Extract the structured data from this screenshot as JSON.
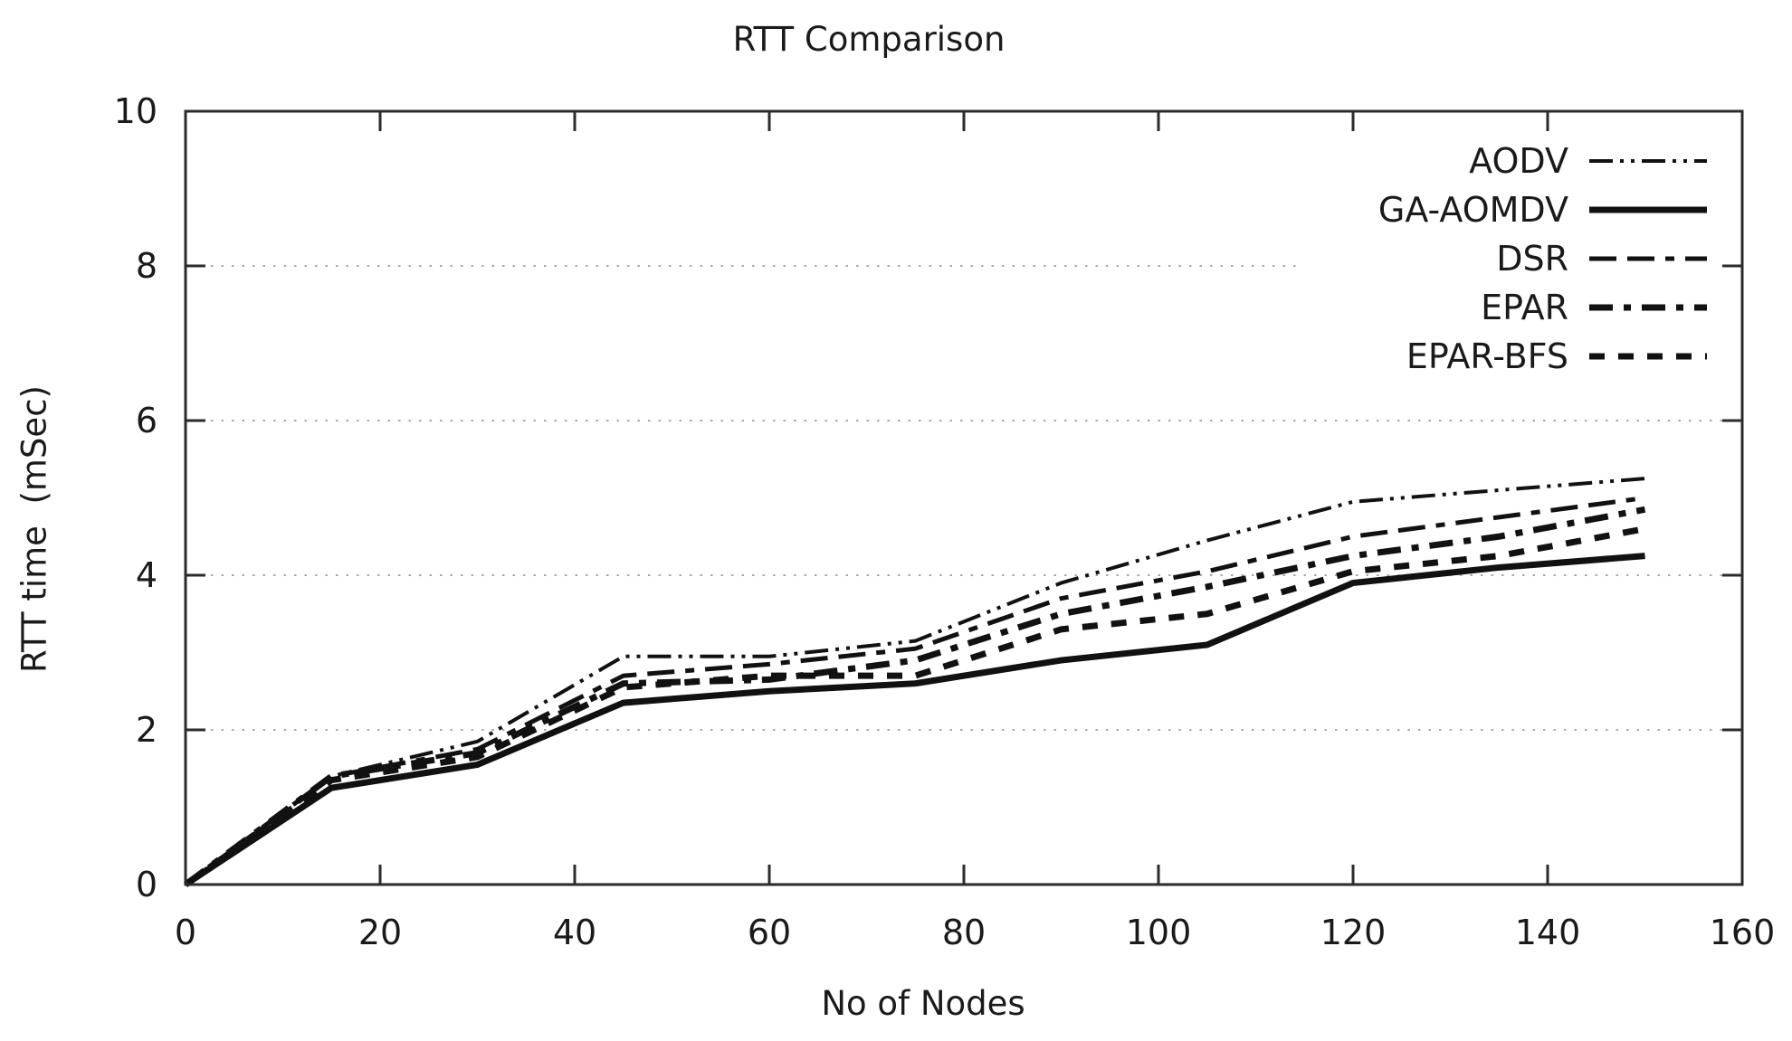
{
  "chart_data": {
    "type": "line",
    "title": "RTT Comparison",
    "xlabel": "No of Nodes",
    "ylabel": "RTT time  (mSec)",
    "xlim": [
      0,
      160
    ],
    "ylim": [
      0,
      10
    ],
    "xticks": [
      0,
      20,
      40,
      60,
      80,
      100,
      120,
      140,
      160
    ],
    "yticks": [
      0,
      2,
      4,
      6,
      8,
      10
    ],
    "grid": "horizontal-dotted",
    "legend_position": "top-right-inside",
    "style": {
      "line_color": "#111111",
      "axis_color": "#2b2b2b",
      "grid_color": "#ada5a5",
      "text_color": "#1a1a1a",
      "background": "#ffffff"
    },
    "series": [
      {
        "name": "AODV",
        "dash": "26 8 4 8 4 8",
        "width": 4,
        "points": [
          [
            0,
            0
          ],
          [
            15,
            1.4
          ],
          [
            30,
            1.85
          ],
          [
            45,
            2.95
          ],
          [
            60,
            2.95
          ],
          [
            75,
            3.15
          ],
          [
            90,
            3.9
          ],
          [
            105,
            4.45
          ],
          [
            120,
            4.95
          ],
          [
            135,
            5.1
          ],
          [
            150,
            5.25
          ]
        ]
      },
      {
        "name": "GA-AOMDV",
        "dash": "",
        "width": 7,
        "points": [
          [
            0,
            0
          ],
          [
            15,
            1.25
          ],
          [
            30,
            1.55
          ],
          [
            45,
            2.35
          ],
          [
            60,
            2.5
          ],
          [
            75,
            2.6
          ],
          [
            90,
            2.9
          ],
          [
            105,
            3.1
          ],
          [
            120,
            3.9
          ],
          [
            135,
            4.1
          ],
          [
            150,
            4.25
          ]
        ]
      },
      {
        "name": "DSR",
        "dash": "30 12 30 12 10 12",
        "width": 5,
        "points": [
          [
            0,
            0
          ],
          [
            15,
            1.4
          ],
          [
            30,
            1.75
          ],
          [
            45,
            2.7
          ],
          [
            60,
            2.85
          ],
          [
            75,
            3.05
          ],
          [
            90,
            3.7
          ],
          [
            105,
            4.05
          ],
          [
            120,
            4.5
          ],
          [
            135,
            4.75
          ],
          [
            150,
            5.0
          ]
        ]
      },
      {
        "name": "EPAR",
        "dash": "26 12 8 12",
        "width": 7,
        "points": [
          [
            0,
            0
          ],
          [
            15,
            1.4
          ],
          [
            30,
            1.7
          ],
          [
            45,
            2.6
          ],
          [
            60,
            2.65
          ],
          [
            75,
            2.9
          ],
          [
            90,
            3.5
          ],
          [
            105,
            3.85
          ],
          [
            120,
            4.25
          ],
          [
            135,
            4.5
          ],
          [
            150,
            4.85
          ]
        ]
      },
      {
        "name": "EPAR-BFS",
        "dash": "17 15",
        "width": 7,
        "points": [
          [
            0,
            0
          ],
          [
            15,
            1.35
          ],
          [
            30,
            1.65
          ],
          [
            45,
            2.55
          ],
          [
            60,
            2.7
          ],
          [
            75,
            2.7
          ],
          [
            90,
            3.3
          ],
          [
            105,
            3.5
          ],
          [
            120,
            4.05
          ],
          [
            135,
            4.25
          ],
          [
            150,
            4.6
          ]
        ]
      }
    ]
  }
}
